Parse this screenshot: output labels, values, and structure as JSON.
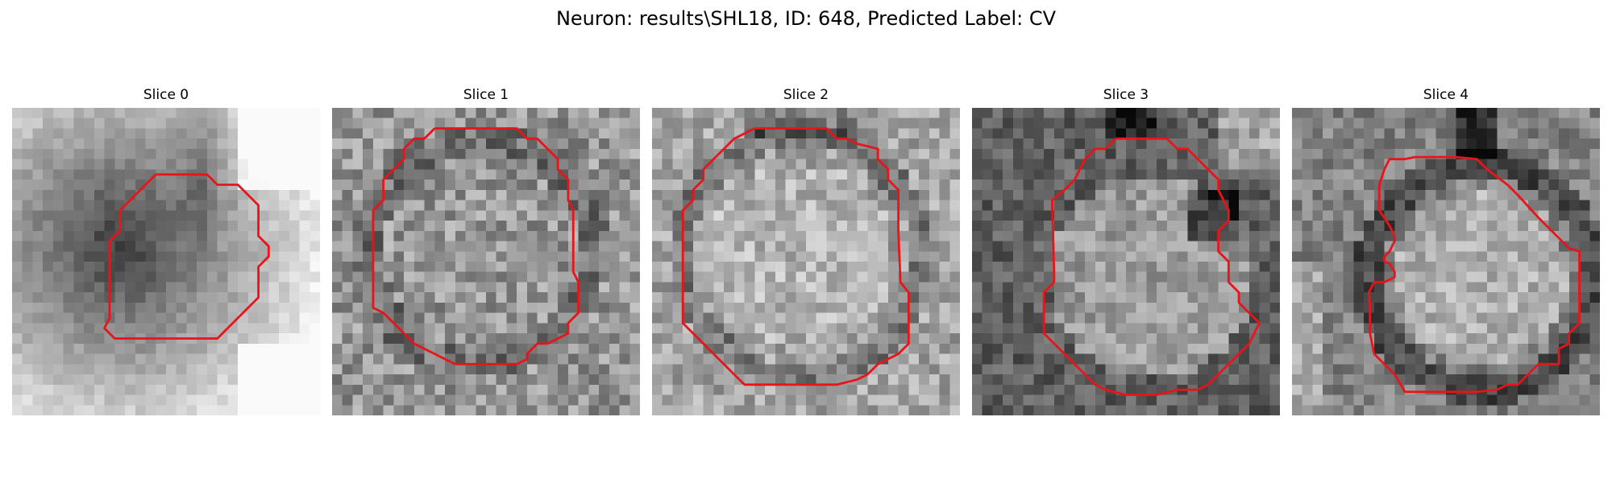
{
  "figure": {
    "title": "Neuron: results\\SHL18, ID: 648, Predicted Label: CV",
    "panels": [
      {
        "title": "Slice 0",
        "colormap": "gray",
        "contour_color": "#e8141a"
      },
      {
        "title": "Slice 1",
        "colormap": "gray",
        "contour_color": "#e8141a"
      },
      {
        "title": "Slice 2",
        "colormap": "gray",
        "contour_color": "#e8141a"
      },
      {
        "title": "Slice 3",
        "colormap": "gray",
        "contour_color": "#e8141a"
      },
      {
        "title": "Slice 4",
        "colormap": "gray",
        "contour_color": "#e8141a"
      }
    ]
  }
}
